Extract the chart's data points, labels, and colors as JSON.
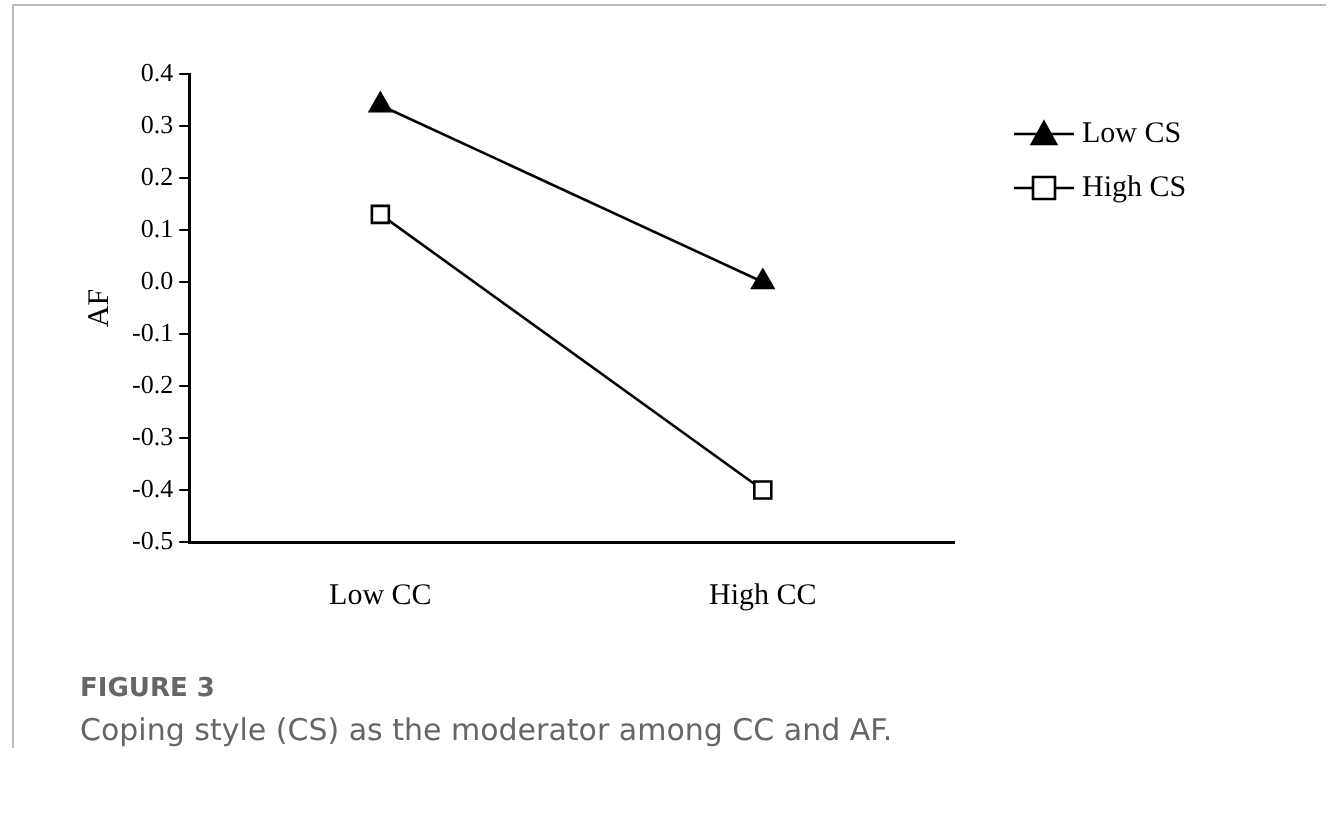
{
  "chart_data": {
    "type": "line",
    "ylabel": "AF",
    "categories": [
      "Low CC",
      "High CC"
    ],
    "series": [
      {
        "name": "Low CS",
        "color": "#000000",
        "marker": "triangle",
        "values": [
          0.34,
          0.0
        ]
      },
      {
        "name": "High CS",
        "color": "#000000",
        "marker": "square",
        "values": [
          0.13,
          -0.4
        ]
      }
    ],
    "ylim": [
      -0.5,
      0.4
    ],
    "yticks": [
      -0.5,
      -0.4,
      -0.3,
      -0.2,
      -0.1,
      {
        "value": 0,
        "label": "0.0"
      },
      0.1,
      0.2,
      0.3,
      0.4
    ],
    "grid": false,
    "legend": "right",
    "line_style": "solid",
    "annotations": [
      "FIGURE 3",
      "Coping style (CS) as the moderator among CC and AF."
    ]
  }
}
